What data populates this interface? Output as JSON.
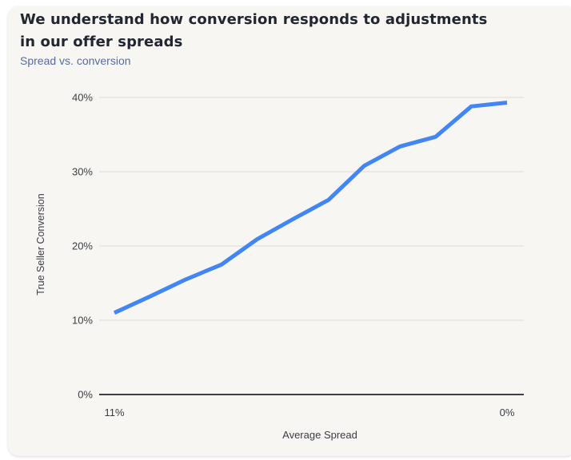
{
  "header": {
    "title": "We understand how conversion responds to adjustments in our offer spreads",
    "title_line1": "We understand how conversion responds to adjustments",
    "title_line2": "in our offer spreads",
    "subtitle": "Spread vs. conversion"
  },
  "colors": {
    "line": "#4285f4",
    "title_text": "#212630",
    "subtitle_text": "#5a6b9e",
    "card_background": "#f7f6f3",
    "gridline": "#dcdcdc",
    "zero_axis": "#3f4045",
    "tick_text": "#3b3d42"
  },
  "chart_data": {
    "type": "line",
    "title": "Spread vs. conversion",
    "xlabel": "Average Spread",
    "ylabel": "True Seller Conversion",
    "x_axis_reversed": true,
    "xlim": [
      11,
      0
    ],
    "ylim": [
      0,
      40
    ],
    "grid": true,
    "legend_position": "none",
    "x": [
      11,
      10,
      9,
      8,
      7,
      6,
      5,
      4,
      3,
      2,
      1,
      0
    ],
    "y": [
      11.0,
      13.2,
      15.5,
      17.5,
      20.9,
      23.6,
      26.2,
      30.8,
      33.4,
      34.7,
      38.8,
      39.3
    ],
    "x_ticks": [
      {
        "v": 11,
        "label": "11%"
      },
      {
        "v": 0,
        "label": "0%"
      }
    ],
    "y_ticks": [
      {
        "v": 0,
        "label": "0%"
      },
      {
        "v": 10,
        "label": "10%"
      },
      {
        "v": 20,
        "label": "20%"
      },
      {
        "v": 30,
        "label": "30%"
      },
      {
        "v": 40,
        "label": "40%"
      }
    ]
  }
}
